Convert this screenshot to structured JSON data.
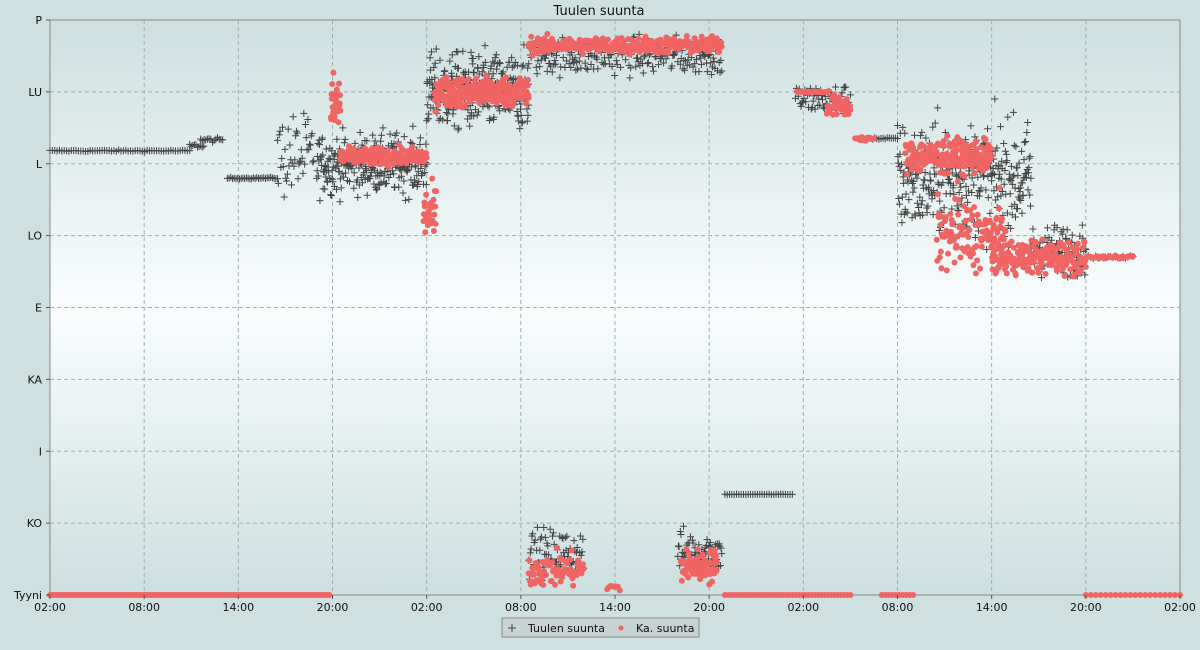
{
  "chart_data": {
    "type": "scatter",
    "title": "Tuulen suunta",
    "y_categories": [
      "Tyyni",
      "KO",
      "I",
      "KA",
      "E",
      "LO",
      "L",
      "LU",
      "P"
    ],
    "x_ticks": [
      "02:00",
      "08:00",
      "14:00",
      "20:00",
      "02:00",
      "08:00",
      "14:00",
      "20:00",
      "02:00",
      "08:00",
      "14:00",
      "20:00",
      "02:00"
    ],
    "x_range_hours": [
      0,
      72
    ],
    "y_range": [
      0,
      8
    ],
    "grid": true,
    "legend_position": "bottom-center",
    "colors": {
      "measured": "#444444",
      "average": "#f06464",
      "grid": "#9fb0b0",
      "plot_bg_edge": "#cddfdf",
      "plot_bg_center": "#fafdfd"
    },
    "series": [
      {
        "name": "Tuulen suunta",
        "marker": "plus",
        "segments": [
          {
            "x0": 0.0,
            "x1": 8.9,
            "y": 6.18,
            "spread": 0.02,
            "count": 60
          },
          {
            "x0": 8.9,
            "x1": 9.8,
            "y": 6.25,
            "spread": 0.05,
            "count": 10
          },
          {
            "x0": 9.6,
            "x1": 11.0,
            "y": 6.33,
            "spread": 0.05,
            "count": 14
          },
          {
            "x0": 11.3,
            "x1": 14.5,
            "y": 5.8,
            "spread": 0.02,
            "count": 30
          },
          {
            "x0": 14.5,
            "x1": 16.8,
            "y": 6.1,
            "spread": 1.0,
            "count": 45
          },
          {
            "x0": 17.0,
            "x1": 24.0,
            "y": 6.0,
            "spread": 0.7,
            "count": 280
          },
          {
            "x0": 24.0,
            "x1": 30.5,
            "y": 7.0,
            "spread": 0.9,
            "count": 300
          },
          {
            "x0": 30.5,
            "x1": 42.8,
            "y": 7.5,
            "spread": 0.45,
            "count": 230
          },
          {
            "x0": 30.5,
            "x1": 34.0,
            "y": 0.6,
            "spread": 0.55,
            "count": 70
          },
          {
            "x0": 40.0,
            "x1": 42.8,
            "y": 0.6,
            "spread": 0.55,
            "count": 70
          },
          {
            "x0": 43.0,
            "x1": 47.3,
            "y": 1.4,
            "spread": 0.01,
            "count": 30
          },
          {
            "x0": 47.5,
            "x1": 51.0,
            "y": 6.9,
            "spread": 0.35,
            "count": 60
          },
          {
            "x0": 51.5,
            "x1": 54.0,
            "y": 6.35,
            "spread": 0.03,
            "count": 20
          },
          {
            "x0": 54.0,
            "x1": 62.5,
            "y": 5.8,
            "spread": 1.3,
            "count": 330
          },
          {
            "x0": 62.5,
            "x1": 66.0,
            "y": 4.8,
            "spread": 0.6,
            "count": 110
          },
          {
            "x0": 66.0,
            "x1": 69.0,
            "y": 4.7,
            "spread": 0.03,
            "count": 20
          }
        ]
      },
      {
        "name": "Ka. suunta",
        "marker": "dot",
        "segments": [
          {
            "x0": 0.0,
            "x1": 17.8,
            "y": 0.0,
            "spread": 0.0,
            "count": 130
          },
          {
            "x0": 17.9,
            "x1": 18.5,
            "y": 6.8,
            "spread": 0.8,
            "count": 30
          },
          {
            "x0": 18.5,
            "x1": 24.0,
            "y": 6.1,
            "spread": 0.2,
            "count": 200
          },
          {
            "x0": 23.8,
            "x1": 24.6,
            "y": 5.3,
            "spread": 0.6,
            "count": 30
          },
          {
            "x0": 24.5,
            "x1": 30.5,
            "y": 7.0,
            "spread": 0.35,
            "count": 280
          },
          {
            "x0": 30.5,
            "x1": 42.8,
            "y": 7.65,
            "spread": 0.2,
            "count": 300
          },
          {
            "x0": 30.5,
            "x1": 34.0,
            "y": 0.35,
            "spread": 0.4,
            "count": 80
          },
          {
            "x0": 35.5,
            "x1": 36.3,
            "y": 0.1,
            "spread": 0.1,
            "count": 8
          },
          {
            "x0": 40.2,
            "x1": 42.5,
            "y": 0.4,
            "spread": 0.4,
            "count": 80
          },
          {
            "x0": 43.0,
            "x1": 51.0,
            "y": 0.0,
            "spread": 0.0,
            "count": 40
          },
          {
            "x0": 47.6,
            "x1": 49.6,
            "y": 7.0,
            "spread": 0.02,
            "count": 20
          },
          {
            "x0": 49.5,
            "x1": 51.0,
            "y": 6.8,
            "spread": 0.25,
            "count": 40
          },
          {
            "x0": 51.3,
            "x1": 52.5,
            "y": 6.35,
            "spread": 0.05,
            "count": 15
          },
          {
            "x0": 53.0,
            "x1": 55.0,
            "y": 0.0,
            "spread": 0.0,
            "count": 10
          },
          {
            "x0": 54.5,
            "x1": 60.0,
            "y": 6.1,
            "spread": 0.4,
            "count": 200
          },
          {
            "x0": 56.5,
            "x1": 61.0,
            "y": 5.0,
            "spread": 0.8,
            "count": 120
          },
          {
            "x0": 60.0,
            "x1": 66.0,
            "y": 4.7,
            "spread": 0.4,
            "count": 200
          },
          {
            "x0": 66.0,
            "x1": 69.0,
            "y": 4.7,
            "spread": 0.03,
            "count": 25
          },
          {
            "x0": 66.0,
            "x1": 72.0,
            "y": 0.0,
            "spread": 0.0,
            "count": 20
          }
        ]
      }
    ]
  }
}
